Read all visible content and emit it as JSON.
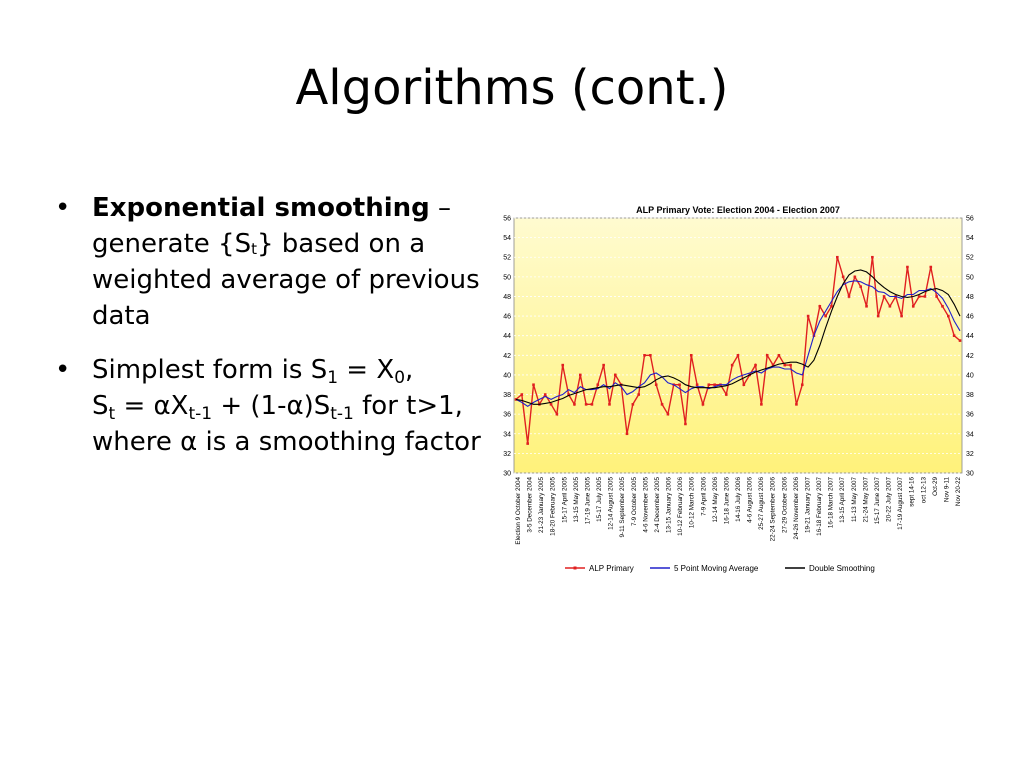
{
  "slide": {
    "title": "Algorithms (cont.)",
    "bullets": [
      {
        "bold": "Exponential smoothing",
        "rest": " – generate {S",
        "sub": "t",
        "rest2": "} based on a weighted average of previous data"
      },
      {
        "line1_a": "Simplest form is S",
        "line1_sub1": "1",
        "line1_b": " = X",
        "line1_sub2": "0",
        "line1_c": ",",
        "line2_a": "S",
        "line2_sub1": "t",
        "line2_b": " = αX",
        "line2_sub2": "t-1",
        "line2_c": " + (1-α)S",
        "line2_sub3": "t-1",
        "line2_d": " for t>1, where α is a smoothing factor"
      }
    ],
    "bullet_char": "•"
  },
  "chart_data": {
    "type": "line",
    "title": "ALP Primary Vote: Election 2004 - Election 2007",
    "ylim": [
      30,
      56
    ],
    "yticks": [
      30,
      32,
      34,
      36,
      38,
      40,
      42,
      44,
      46,
      48,
      50,
      52,
      54,
      56
    ],
    "grid": true,
    "legend_position": "bottom",
    "x_labels": [
      "Election 9 October 2004",
      "3-5 December 2004",
      "21-23 January 2005",
      "18-20 February 2005",
      "15-17 April 2005",
      "13-15 May 2005",
      "17-19 June 2005",
      "15-17 July 2005",
      "12-14 August 2005",
      "9-11 September 2005",
      "7-9 October 2005",
      "4-6 November 2005",
      "2-4 December 2005",
      "13-15 January 2006",
      "10-12 February 2006",
      "10-12 March 2006",
      "7-9 April 2006",
      "12-14 May 2006",
      "16-18 June 2006",
      "14-16 July 2006",
      "4-6 August 2006",
      "25-27 August 2006",
      "22-24 September 2006",
      "27-29 October 2006",
      "24-26 November 2006",
      "19-21 January 2007",
      "16-18 February 2007",
      "16-18 March 2007",
      "13-15 April 2007",
      "11-13 May 2007",
      "21-24 May 2007",
      "15-17 June 2007",
      "20-22 July 2007",
      "17-19 August 2007",
      "sept 14-16",
      "oct 12-13",
      "Oct-29",
      "Nov 9-11",
      "Nov 20-22"
    ],
    "series": [
      {
        "name": "ALP Primary",
        "color": "#e02020",
        "values": [
          37.5,
          38,
          33,
          39,
          37,
          38,
          37,
          36,
          41,
          38,
          37,
          40,
          37,
          37,
          39,
          41,
          37,
          40,
          39,
          34,
          37,
          38,
          42,
          42,
          39,
          37,
          36,
          39,
          39,
          35,
          42,
          39,
          37,
          39,
          39,
          39,
          38,
          41,
          42,
          39,
          40,
          41,
          37,
          42,
          41,
          42,
          41,
          41,
          37,
          39,
          46,
          44,
          47,
          46,
          47,
          52,
          50,
          48,
          50,
          49,
          47,
          52,
          46,
          48,
          47,
          48,
          46,
          51,
          47,
          48,
          48,
          51,
          48,
          47,
          46,
          44,
          43.5
        ]
      },
      {
        "name": "5 Point Moving Average",
        "color": "#2020cc",
        "values": [
          37.5,
          37.2,
          36.8,
          37.2,
          37.5,
          37.8,
          37.5,
          37.8,
          38,
          38.5,
          38.2,
          38.8,
          38.5,
          38.5,
          38.6,
          39,
          38.6,
          39.2,
          38.8,
          38,
          38.3,
          38.8,
          39.2,
          40,
          40.2,
          39.8,
          39.2,
          39,
          38.6,
          38.2,
          38.6,
          38.8,
          38.8,
          38.6,
          38.8,
          39,
          39,
          39.5,
          39.8,
          40,
          40.2,
          40.4,
          40.2,
          40.6,
          40.8,
          40.8,
          40.6,
          40.6,
          40.2,
          40,
          42,
          44,
          45.5,
          46.5,
          47.5,
          48.5,
          49.2,
          49.5,
          49.6,
          49.5,
          49.2,
          49,
          48.5,
          48.4,
          48,
          48,
          47.8,
          48.2,
          48.2,
          48.6,
          48.6,
          48.8,
          48.4,
          47.8,
          46.8,
          45.5,
          44.5
        ]
      },
      {
        "name": "Double Smoothing",
        "color": "#000000",
        "values": [
          37.5,
          37.4,
          37.2,
          37,
          37,
          37.1,
          37.2,
          37.4,
          37.6,
          37.9,
          38.1,
          38.3,
          38.5,
          38.6,
          38.7,
          38.8,
          38.8,
          38.9,
          39,
          38.9,
          38.8,
          38.7,
          38.8,
          39.1,
          39.5,
          39.8,
          39.9,
          39.7,
          39.4,
          39,
          38.8,
          38.7,
          38.7,
          38.7,
          38.7,
          38.8,
          38.9,
          39.1,
          39.4,
          39.7,
          40,
          40.3,
          40.5,
          40.7,
          40.9,
          41.1,
          41.2,
          41.3,
          41.3,
          41.1,
          40.8,
          41.5,
          43,
          44.8,
          46.5,
          48,
          49.3,
          50.2,
          50.6,
          50.7,
          50.5,
          50,
          49.4,
          48.9,
          48.5,
          48.2,
          48,
          47.9,
          48,
          48.2,
          48.5,
          48.7,
          48.8,
          48.6,
          48.2,
          47.2,
          46
        ]
      }
    ]
  }
}
